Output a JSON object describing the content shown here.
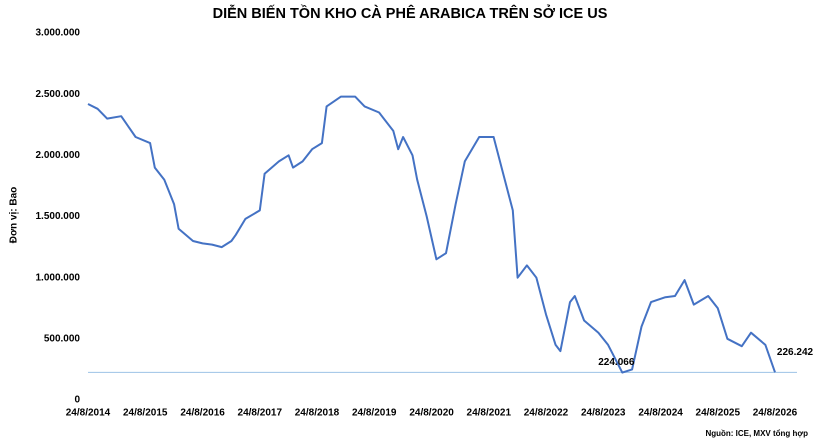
{
  "chart_data": {
    "type": "line",
    "title": "DIỄN BIẾN TỒN KHO CÀ PHÊ ARABICA TRÊN SỞ ICE US",
    "y_label": "Đơn vị: Bao",
    "source": "Nguồn: ICE, MXV tổng hợp",
    "color": "#4472c4",
    "reference_color": "#9dc3e6",
    "x": [
      "2014-08-24",
      "2014-10-24",
      "2014-12-24",
      "2015-03-24",
      "2015-06-24",
      "2015-09-24",
      "2015-10-24",
      "2015-12-24",
      "2016-02-24",
      "2016-03-24",
      "2016-06-24",
      "2016-08-24",
      "2016-10-24",
      "2016-12-24",
      "2017-02-24",
      "2017-03-24",
      "2017-05-24",
      "2017-08-24",
      "2017-09-24",
      "2017-12-24",
      "2018-02-24",
      "2018-03-24",
      "2018-05-24",
      "2018-07-24",
      "2018-09-24",
      "2018-10-24",
      "2019-01-24",
      "2019-04-24",
      "2019-06-24",
      "2019-09-24",
      "2019-12-24",
      "2020-01-24",
      "2020-02-24",
      "2020-04-24",
      "2020-05-24",
      "2020-07-24",
      "2020-09-24",
      "2020-11-24",
      "2021-01-24",
      "2021-03-24",
      "2021-06-24",
      "2021-09-24",
      "2021-11-24",
      "2022-01-24",
      "2022-02-24",
      "2022-04-24",
      "2022-06-24",
      "2022-08-24",
      "2022-10-24",
      "2022-11-24",
      "2023-01-24",
      "2023-02-24",
      "2023-04-24",
      "2023-07-24",
      "2023-09-24",
      "2023-12-24",
      "2024-02-24",
      "2024-04-24",
      "2024-06-24",
      "2024-09-24",
      "2024-11-24",
      "2025-01-24",
      "2025-03-24",
      "2025-06-24",
      "2025-08-24",
      "2025-10-24",
      "2026-01-24",
      "2026-03-24",
      "2026-06-24",
      "2026-08-24"
    ],
    "values": [
      2420000,
      2380000,
      2300000,
      2320000,
      2150000,
      2100000,
      1900000,
      1800000,
      1600000,
      1400000,
      1300000,
      1280000,
      1270000,
      1250000,
      1300000,
      1350000,
      1480000,
      1550000,
      1850000,
      1950000,
      2000000,
      1900000,
      1950000,
      2050000,
      2100000,
      2400000,
      2480000,
      2480000,
      2400000,
      2350000,
      2200000,
      2050000,
      2150000,
      2000000,
      1800000,
      1500000,
      1150000,
      1200000,
      1600000,
      1950000,
      2150000,
      2150000,
      1850000,
      1550000,
      1000000,
      1100000,
      1000000,
      700000,
      450000,
      400000,
      800000,
      850000,
      650000,
      550000,
      450000,
      224066,
      250000,
      600000,
      800000,
      840000,
      850000,
      980000,
      780000,
      850000,
      750000,
      500000,
      440000,
      550000,
      450000,
      226242
    ],
    "value_labels": [
      null,
      null,
      null,
      null,
      null,
      null,
      null,
      null,
      null,
      null,
      null,
      null,
      null,
      null,
      null,
      null,
      null,
      null,
      null,
      null,
      null,
      null,
      null,
      null,
      null,
      null,
      null,
      null,
      null,
      null,
      null,
      null,
      null,
      null,
      null,
      null,
      null,
      null,
      null,
      null,
      null,
      null,
      null,
      null,
      null,
      null,
      null,
      null,
      null,
      null,
      null,
      null,
      null,
      null,
      null,
      "224.066",
      null,
      null,
      null,
      null,
      null,
      null,
      null,
      null,
      null,
      null,
      null,
      null,
      null,
      "226.242"
    ],
    "xlim": [
      "2014-08-24",
      "2026-08-24"
    ],
    "xticks": [
      {
        "value": "2014-08-24",
        "label": "24/8/2014"
      },
      {
        "value": "2015-08-24",
        "label": "24/8/2015"
      },
      {
        "value": "2016-08-24",
        "label": "24/8/2016"
      },
      {
        "value": "2017-08-24",
        "label": "24/8/2017"
      },
      {
        "value": "2018-08-24",
        "label": "24/8/2018"
      },
      {
        "value": "2019-08-24",
        "label": "24/8/2019"
      },
      {
        "value": "2020-08-24",
        "label": "24/8/2020"
      },
      {
        "value": "2021-08-24",
        "label": "24/8/2021"
      },
      {
        "value": "2022-08-24",
        "label": "24/8/2022"
      },
      {
        "value": "2023-08-24",
        "label": "24/8/2023"
      },
      {
        "value": "2024-08-24",
        "label": "24/8/2024"
      },
      {
        "value": "2025-08-24",
        "label": "24/8/2025"
      },
      {
        "value": "2026-08-24",
        "label": "24/8/2026"
      }
    ],
    "ylim": [
      0,
      3000000
    ],
    "yticks": [
      0,
      {
        "value": 500000,
        "label": "500.000"
      },
      {
        "value": 1000000,
        "label": "1.000.000"
      },
      {
        "value": 1500000,
        "label": "1.500.000"
      },
      {
        "value": 2000000,
        "label": "2.000.000"
      },
      {
        "value": 2500000,
        "label": "2.500.000"
      },
      {
        "value": 3000000,
        "label": "3.000.000"
      }
    ]
  }
}
